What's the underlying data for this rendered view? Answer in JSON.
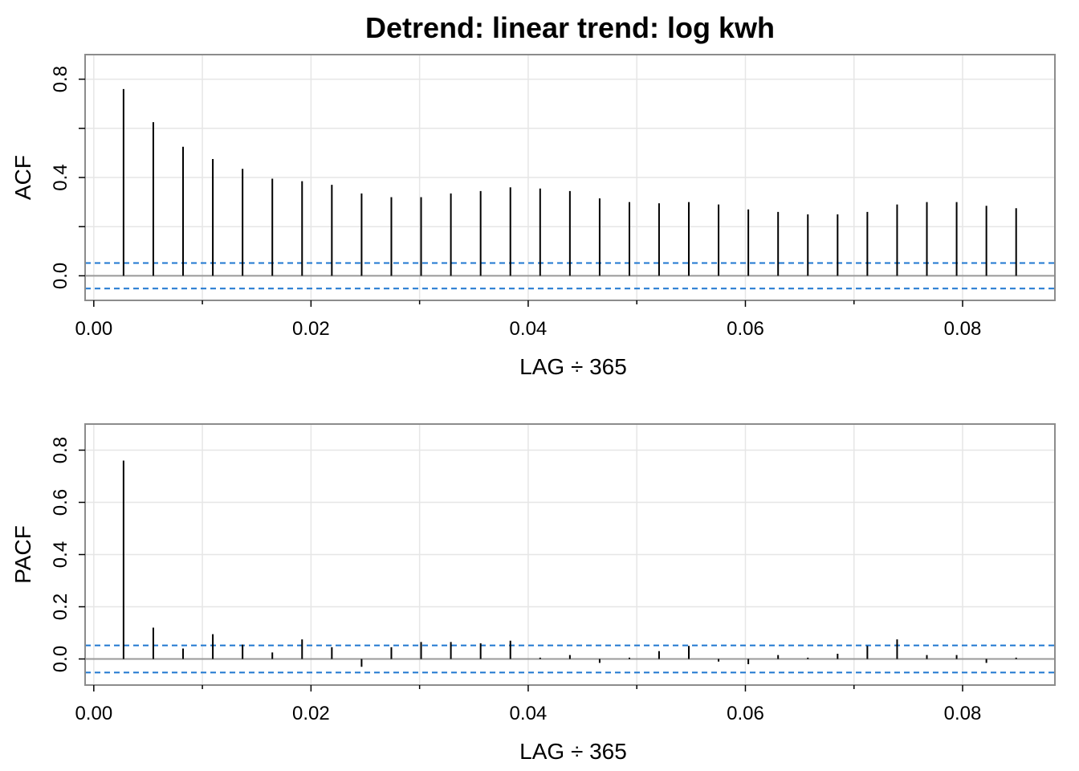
{
  "title": "Detrend: linear trend: log kwh",
  "colors": {
    "bars": "#000000",
    "zero_line": "#999999",
    "confidence": "#1f77d0",
    "grid": "#e6e6e6",
    "frame": "#8c8c8c"
  },
  "chart_data": [
    {
      "type": "bar",
      "name": "acf",
      "ylabel": "ACF",
      "xlabel": "LAG ÷ 365",
      "xlim": [
        -0.0008,
        0.0885
      ],
      "ylim": [
        -0.1,
        0.9
      ],
      "x_ticks": [
        "0.00",
        "0.02",
        "0.04",
        "0.06",
        "0.08"
      ],
      "y_ticks": [
        "0.0",
        "0.4",
        "0.8"
      ],
      "grid": true,
      "confidence_bound": 0.052,
      "x": [
        0.00274,
        0.00548,
        0.00822,
        0.01096,
        0.0137,
        0.01644,
        0.01918,
        0.02192,
        0.02466,
        0.0274,
        0.03014,
        0.03288,
        0.03562,
        0.03836,
        0.0411,
        0.04384,
        0.04658,
        0.04932,
        0.05205,
        0.05479,
        0.05753,
        0.06027,
        0.06301,
        0.06575,
        0.06849,
        0.07123,
        0.07397,
        0.07671,
        0.07945,
        0.08219,
        0.08493
      ],
      "values": [
        0.76,
        0.625,
        0.525,
        0.475,
        0.435,
        0.395,
        0.385,
        0.37,
        0.335,
        0.32,
        0.32,
        0.335,
        0.345,
        0.36,
        0.355,
        0.345,
        0.315,
        0.3,
        0.295,
        0.3,
        0.29,
        0.27,
        0.26,
        0.25,
        0.25,
        0.26,
        0.29,
        0.3,
        0.3,
        0.285,
        0.275
      ]
    },
    {
      "type": "bar",
      "name": "pacf",
      "ylabel": "PACF",
      "xlabel": "LAG ÷ 365",
      "xlim": [
        -0.0008,
        0.0885
      ],
      "ylim": [
        -0.1,
        0.9
      ],
      "x_ticks": [
        "0.00",
        "0.02",
        "0.04",
        "0.06",
        "0.08"
      ],
      "y_ticks": [
        "0.0",
        "0.2",
        "0.4",
        "0.6",
        "0.8"
      ],
      "grid": true,
      "confidence_bound": 0.052,
      "x": [
        0.00274,
        0.00548,
        0.00822,
        0.01096,
        0.0137,
        0.01644,
        0.01918,
        0.02192,
        0.02466,
        0.0274,
        0.03014,
        0.03288,
        0.03562,
        0.03836,
        0.0411,
        0.04384,
        0.04658,
        0.04932,
        0.05205,
        0.05479,
        0.05753,
        0.06027,
        0.06301,
        0.06575,
        0.06849,
        0.07123,
        0.07397,
        0.07671,
        0.07945,
        0.08219,
        0.08493
      ],
      "values": [
        0.76,
        0.12,
        0.04,
        0.095,
        0.055,
        0.025,
        0.075,
        0.045,
        -0.03,
        0.045,
        0.065,
        0.065,
        0.06,
        0.07,
        0.005,
        0.015,
        -0.015,
        0.005,
        0.03,
        0.05,
        -0.01,
        -0.02,
        0.015,
        0.005,
        0.02,
        0.05,
        0.075,
        0.015,
        0.015,
        -0.015,
        0.005
      ]
    }
  ]
}
